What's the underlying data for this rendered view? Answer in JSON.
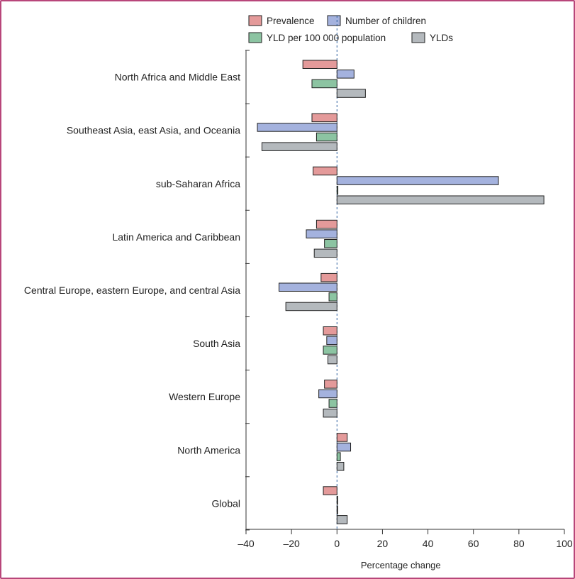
{
  "chart_data": {
    "type": "bar",
    "orientation": "horizontal",
    "title": "",
    "xlabel": "Percentage change",
    "ylabel": "",
    "xlim": [
      -40,
      100
    ],
    "xticks": [
      -40,
      -20,
      0,
      20,
      40,
      60,
      80,
      100
    ],
    "xtick_labels": [
      "–40",
      "–20",
      "0",
      "20",
      "40",
      "60",
      "80",
      "100"
    ],
    "legend_position": "top-right",
    "categories": [
      "North Africa and Middle East",
      "Southeast Asia, east Asia, and Oceania",
      "sub-Saharan Africa",
      "Latin America and Caribbean",
      "Central Europe, eastern Europe, and central Asia",
      "South Asia",
      "Western Europe",
      "North America",
      "Global"
    ],
    "series": [
      {
        "name": "Prevalence",
        "color": "#e49a9a",
        "values": [
          -15,
          -11,
          -10.5,
          -9,
          -7,
          -6,
          -5.5,
          4.5,
          -6
        ]
      },
      {
        "name": "Number of children",
        "color": "#a4b2de",
        "values": [
          7.5,
          -35,
          71,
          -13.5,
          -25.5,
          -4.5,
          -8,
          6,
          0.3
        ]
      },
      {
        "name": "YLD per 100 000 population",
        "color": "#8cc4a2",
        "values": [
          -11,
          -9,
          0.4,
          -5.5,
          -3.5,
          -6,
          -3.5,
          1.5,
          0.2
        ]
      },
      {
        "name": "YLDs",
        "color": "#b4b9bd",
        "values": [
          12.5,
          -33,
          91,
          -10,
          -22.5,
          -4,
          -6,
          3,
          4.5
        ]
      }
    ]
  }
}
